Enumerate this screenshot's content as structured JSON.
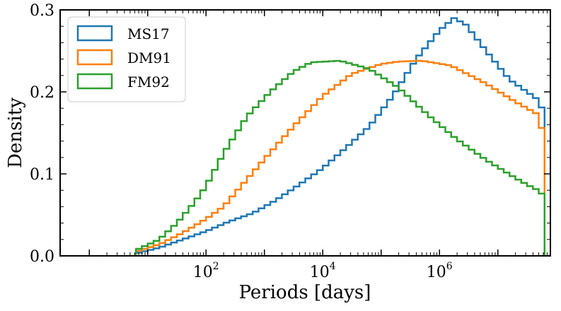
{
  "chart_data": {
    "type": "step-histogram",
    "xscale": "log",
    "xlabel": "Periods [days]",
    "ylabel": "Density",
    "xlim_log10": [
      -0.5,
      7.9
    ],
    "ylim": [
      0,
      0.3
    ],
    "x_ticks": [
      {
        "base": "10",
        "exp": "2",
        "log": 2
      },
      {
        "base": "10",
        "exp": "4",
        "log": 4
      },
      {
        "base": "10",
        "exp": "6",
        "log": 6
      }
    ],
    "y_ticks": [
      {
        "label": "0.0",
        "value": 0.0
      },
      {
        "label": "0.1",
        "value": 0.1
      },
      {
        "label": "0.2",
        "value": 0.2
      },
      {
        "label": "0.3",
        "value": 0.3
      }
    ],
    "legend": {
      "position": "top-left",
      "entries": [
        "MS17",
        "DM91",
        "FM92"
      ]
    },
    "bin_edges_log10": {
      "start": 0.8,
      "stop": 7.8,
      "count": 70
    },
    "series": [
      {
        "name": "MS17",
        "color": "#1f77b4",
        "anchors": [
          [
            0.8,
            0.003
          ],
          [
            1.2,
            0.01
          ],
          [
            1.6,
            0.02
          ],
          [
            2.0,
            0.03
          ],
          [
            2.4,
            0.042
          ],
          [
            2.8,
            0.052
          ],
          [
            3.2,
            0.068
          ],
          [
            3.6,
            0.087
          ],
          [
            4.0,
            0.107
          ],
          [
            4.4,
            0.132
          ],
          [
            4.8,
            0.158
          ],
          [
            5.2,
            0.195
          ],
          [
            5.6,
            0.24
          ],
          [
            6.0,
            0.275
          ],
          [
            6.25,
            0.29
          ],
          [
            6.45,
            0.282
          ],
          [
            6.8,
            0.25
          ],
          [
            7.2,
            0.215
          ],
          [
            7.5,
            0.2
          ],
          [
            7.7,
            0.19
          ],
          [
            7.8,
            0.172
          ]
        ]
      },
      {
        "name": "DM91",
        "color": "#ff7f0e",
        "anchors": [
          [
            0.8,
            0.005
          ],
          [
            1.2,
            0.014
          ],
          [
            1.6,
            0.028
          ],
          [
            2.0,
            0.045
          ],
          [
            2.3,
            0.06
          ],
          [
            2.6,
            0.085
          ],
          [
            3.0,
            0.118
          ],
          [
            3.5,
            0.158
          ],
          [
            4.0,
            0.195
          ],
          [
            4.5,
            0.222
          ],
          [
            5.0,
            0.234
          ],
          [
            5.3,
            0.237
          ],
          [
            5.7,
            0.238
          ],
          [
            6.2,
            0.232
          ],
          [
            6.8,
            0.21
          ],
          [
            7.3,
            0.188
          ],
          [
            7.6,
            0.176
          ],
          [
            7.7,
            0.172
          ],
          [
            7.8,
            0.14
          ]
        ]
      },
      {
        "name": "FM92",
        "color": "#2ca02c",
        "anchors": [
          [
            0.8,
            0.007
          ],
          [
            1.2,
            0.02
          ],
          [
            1.5,
            0.04
          ],
          [
            1.8,
            0.065
          ],
          [
            2.0,
            0.085
          ],
          [
            2.3,
            0.125
          ],
          [
            2.7,
            0.17
          ],
          [
            3.1,
            0.2
          ],
          [
            3.5,
            0.225
          ],
          [
            3.8,
            0.236
          ],
          [
            4.3,
            0.238
          ],
          [
            4.8,
            0.228
          ],
          [
            5.3,
            0.205
          ],
          [
            5.8,
            0.172
          ],
          [
            6.3,
            0.142
          ],
          [
            6.8,
            0.117
          ],
          [
            7.3,
            0.095
          ],
          [
            7.6,
            0.083
          ],
          [
            7.7,
            0.08
          ],
          [
            7.8,
            0.072
          ]
        ]
      }
    ]
  }
}
